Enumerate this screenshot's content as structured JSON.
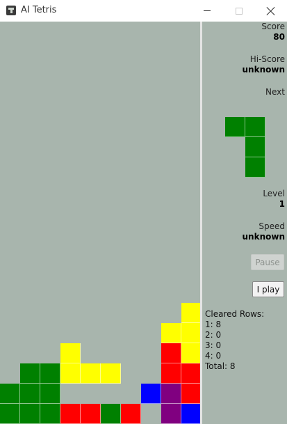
{
  "window": {
    "title": "AI Tetris",
    "icon": "tetris-app-icon"
  },
  "panel": {
    "score_label": "Score",
    "score_value": "80",
    "hiscore_label": "Hi-Score",
    "hiscore_value": "unknown",
    "next_label": "Next",
    "level_label": "Level",
    "level_value": "1",
    "speed_label": "Speed",
    "speed_value": "unknown",
    "pause_label": "Pause",
    "play_label": "I play",
    "cleared_title": "Cleared Rows:",
    "cleared_1": "1: 8",
    "cleared_2": "2: 0",
    "cleared_3": "3: 0",
    "cleared_4": "4: 0",
    "cleared_total": "Total: 8"
  },
  "colors": {
    "background": "#a8b5ad",
    "G": "#008000",
    "Y": "#ffff00",
    "R": "#ff0000",
    "B": "#0000ff",
    "P": "#800080"
  },
  "next_piece": {
    "name": "J",
    "color": "G",
    "cells": [
      [
        0,
        0
      ],
      [
        1,
        0
      ],
      [
        1,
        1
      ],
      [
        1,
        2
      ]
    ]
  },
  "board": {
    "columns": 10,
    "visible_rows": 20,
    "rows_bottom_up": [
      "GGGRRGR.PB",
      "GGG....BPR",
      ".GGYYY..RR",
      "...Y....RY",
      "........YY",
      ".........Y"
    ]
  }
}
